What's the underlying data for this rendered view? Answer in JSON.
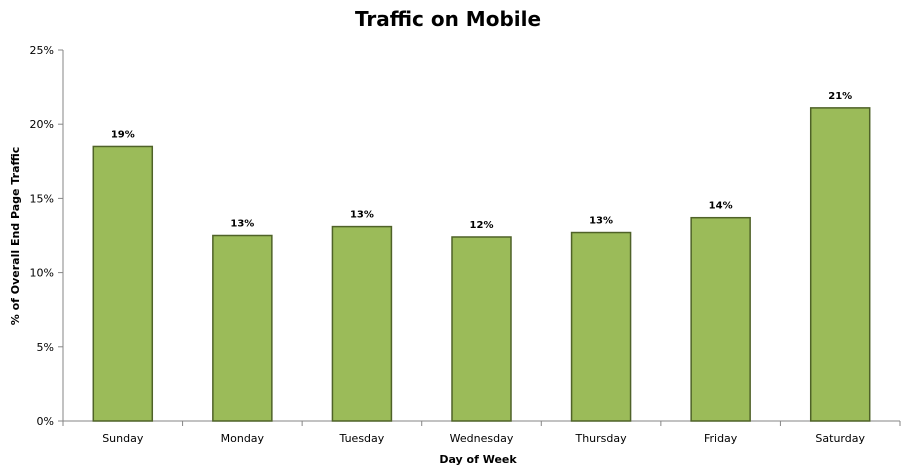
{
  "chart_data": {
    "type": "bar",
    "title": "Traffic on Mobile",
    "xlabel": "Day of Week",
    "ylabel": "% of Overall End Page Traffic",
    "categories": [
      "Sunday",
      "Monday",
      "Tuesday",
      "Wednesday",
      "Thursday",
      "Friday",
      "Saturday"
    ],
    "values": [
      18.5,
      12.5,
      13.1,
      12.4,
      12.7,
      13.7,
      21.1
    ],
    "data_labels": [
      "19%",
      "13%",
      "13%",
      "12%",
      "13%",
      "14%",
      "21%"
    ],
    "ylim": [
      0,
      25
    ],
    "yticks": [
      0,
      5,
      10,
      15,
      20,
      25
    ],
    "ytick_labels": [
      "0%",
      "5%",
      "10%",
      "15%",
      "20%",
      "25%"
    ],
    "grid": false,
    "legend": "none",
    "colors": {
      "bar_fill": "#9bbb59",
      "bar_stroke": "#4f6228",
      "axis": "#868686"
    }
  }
}
